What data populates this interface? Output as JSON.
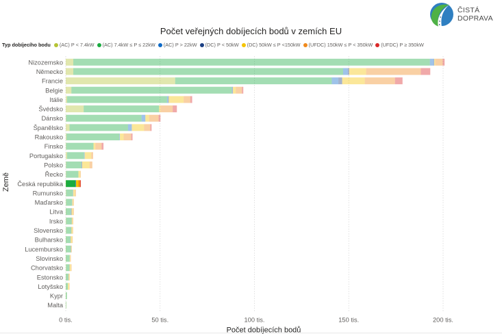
{
  "logo": {
    "line1": "ČISTÁ",
    "line2": "DOPRAVA"
  },
  "chart_data": {
    "type": "bar",
    "orientation": "horizontal",
    "stacked": true,
    "title": "Počet veřejných dobíjecích bodů v zemích EU",
    "xlabel": "Počet dobíjecích bodů",
    "ylabel": "Země",
    "xlim": [
      0,
      205000
    ],
    "xticks": [
      0,
      50000,
      100000,
      150000,
      200000
    ],
    "xtick_labels": [
      "0 tis.",
      "50 tis.",
      "100 tis.",
      "150 tis.",
      "200 tis."
    ],
    "grid": "vertical-dotted",
    "legend_title": "Typ dobíjecího bodu",
    "legend_position": "top-left",
    "highlighted_category": "Česká republika",
    "categories": [
      "Nizozemsko",
      "Německo",
      "Francie",
      "Belgie",
      "Itálie",
      "Švédsko",
      "Dánsko",
      "Španělsko",
      "Rakousko",
      "Finsko",
      "Portugalsko",
      "Polsko",
      "Řecko",
      "Česká republika",
      "Rumunsko",
      "Maďarsko",
      "Litva",
      "Irsko",
      "Slovensko",
      "Bulharsko",
      "Lucembursko",
      "Slovinsko",
      "Chorvatsko",
      "Estonsko",
      "Lotyšsko",
      "Kypr",
      "Malta"
    ],
    "series": [
      {
        "name": "(AC) P < 7.4kW",
        "color": "#B5C334",
        "values": [
          4000,
          4000,
          58000,
          3000,
          700,
          9500,
          200,
          2000,
          400,
          200,
          700,
          200,
          200,
          100,
          200,
          200,
          100,
          200,
          200,
          100,
          100,
          100,
          200,
          100,
          100,
          50,
          20
        ]
      },
      {
        "name": "(AC) 7.4kW ≤ P ≤ 22kW",
        "color": "#1AAB40",
        "values": [
          189000,
          143000,
          83000,
          85000,
          53000,
          40000,
          40000,
          31000,
          28000,
          14500,
          9000,
          8000,
          6500,
          5000,
          3500,
          3000,
          2500,
          2800,
          2600,
          2300,
          2500,
          2000,
          1600,
          1200,
          1000,
          600,
          100
        ]
      },
      {
        "name": "(AC) P > 22kW",
        "color": "#0E6AC7",
        "values": [
          2000,
          2500,
          3500,
          300,
          700,
          0,
          2000,
          2000,
          300,
          0,
          300,
          300,
          0,
          300,
          200,
          200,
          300,
          100,
          100,
          100,
          100,
          0,
          100,
          100,
          0,
          0,
          0
        ]
      },
      {
        "name": "(DC) P < 50kW",
        "color": "#1B3F83",
        "values": [
          300,
          700,
          2000,
          300,
          100,
          0,
          0,
          0,
          0,
          0,
          0,
          100,
          0,
          0,
          0,
          0,
          100,
          0,
          0,
          0,
          0,
          0,
          0,
          0,
          0,
          0,
          0
        ]
      },
      {
        "name": "(DC) 50kW ≤ P <150kW",
        "color": "#F5C400",
        "values": [
          500,
          9000,
          12000,
          1500,
          8000,
          700,
          2000,
          6500,
          2000,
          1000,
          3500,
          4000,
          1000,
          1300,
          1000,
          600,
          800,
          600,
          700,
          900,
          300,
          300,
          900,
          500,
          700,
          0,
          0
        ]
      },
      {
        "name": "(UFDC) 150kW ≤ P < 350kW",
        "color": "#F08A1C",
        "values": [
          4000,
          29000,
          16000,
          3300,
          3500,
          6500,
          5000,
          3300,
          4000,
          3300,
          1000,
          1500,
          300,
          1000,
          500,
          300,
          500,
          300,
          300,
          300,
          200,
          300,
          300,
          200,
          200,
          0,
          0
        ]
      },
      {
        "name": "(UFDC) P ≥ 350kW",
        "color": "#D92929",
        "values": [
          1000,
          5000,
          4000,
          700,
          1000,
          2200,
          1000,
          700,
          700,
          1000,
          0,
          0,
          0,
          300,
          0,
          0,
          0,
          0,
          0,
          0,
          0,
          0,
          0,
          0,
          0,
          0,
          0
        ]
      }
    ]
  }
}
